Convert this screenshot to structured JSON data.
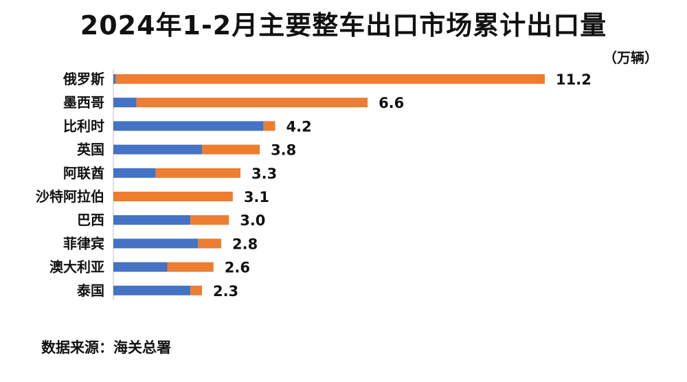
{
  "title": "2024年1-2月主要整车出口市场累计出口量",
  "unit_label": "（万辆）",
  "source": "数据来源：海关总署",
  "colors": {
    "series_blue": "#4472C4",
    "series_orange": "#ED7D31"
  },
  "chart_data": {
    "type": "bar",
    "orientation": "horizontal",
    "stacked": true,
    "categories": [
      "俄罗斯",
      "墨西哥",
      "比利时",
      "英国",
      "阿联酋",
      "沙特阿拉伯",
      "巴西",
      "菲律宾",
      "澳大利亚",
      "泰国"
    ],
    "series": [
      {
        "values": [
          0.06,
          0.6,
          3.9,
          2.3,
          1.1,
          0.0,
          2.0,
          2.2,
          1.4,
          2.0
        ]
      },
      {
        "values": [
          11.14,
          6.0,
          0.3,
          1.5,
          2.2,
          3.1,
          1.0,
          0.6,
          1.2,
          0.3
        ]
      }
    ],
    "totals": [
      11.2,
      6.6,
      4.2,
      3.8,
      3.3,
      3.1,
      3.0,
      2.8,
      2.6,
      2.3
    ],
    "total_labels": [
      "11.2",
      "6.6",
      "4.2",
      "3.8",
      "3.3",
      "3.1",
      "3.0",
      "2.8",
      "2.6",
      "2.3"
    ],
    "xlim": [
      0,
      11.2
    ],
    "grid": false,
    "legend": "none"
  }
}
